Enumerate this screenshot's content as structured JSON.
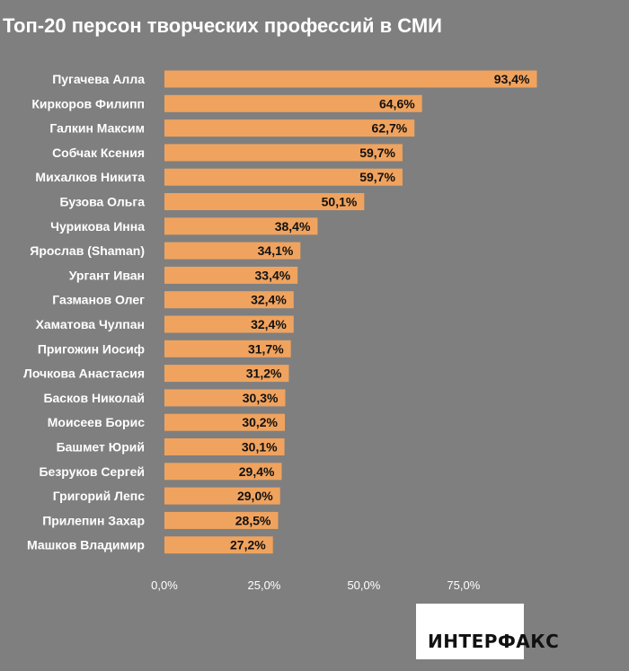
{
  "chart_data": {
    "type": "bar",
    "orientation": "horizontal",
    "title": "Топ-20 персон творческих профессий в СМИ",
    "categories": [
      "Пугачева Алла",
      "Киркоров Филипп",
      "Галкин Максим",
      "Собчак Ксения",
      "Михалков Никита",
      "Бузова Ольга",
      "Чурикова Инна",
      "Ярослав (Shaman)",
      "Ургант Иван",
      "Газманов Олег",
      "Хаматова Чулпан",
      "Пригожин Иосиф",
      "Лочкова Анастасия",
      "Басков Николай",
      "Моисеев Борис",
      "Башмет Юрий",
      "Безруков Сергей",
      "Григорий Лепс",
      "Прилепин Захар",
      "Машков Владимир"
    ],
    "values": [
      93.4,
      64.6,
      62.7,
      59.7,
      59.7,
      50.1,
      38.4,
      34.1,
      33.4,
      32.4,
      32.4,
      31.7,
      31.2,
      30.3,
      30.2,
      30.1,
      29.4,
      29.0,
      28.5,
      27.2
    ],
    "value_labels": [
      "93,4%",
      "64,6%",
      "62,7%",
      "59,7%",
      "59,7%",
      "50,1%",
      "38,4%",
      "34,1%",
      "33,4%",
      "32,4%",
      "32,4%",
      "31,7%",
      "31,2%",
      "30,3%",
      "30,2%",
      "30,1%",
      "29,4%",
      "29,0%",
      "28,5%",
      "27,2%"
    ],
    "xticks": [
      0,
      25,
      50,
      75
    ],
    "xtick_labels": [
      "0,0%",
      "25,0%",
      "50,0%",
      "75,0%"
    ],
    "xlim": [
      0,
      100
    ],
    "xlabel": "",
    "ylabel": "",
    "grid": false,
    "bar_color": "#f0a35e",
    "background": "#7f7f7f"
  },
  "logo": {
    "text": "ИНТЕРФАКС"
  }
}
